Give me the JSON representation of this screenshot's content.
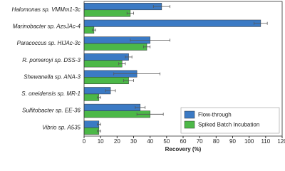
{
  "chart_data": {
    "type": "hbar",
    "categories": [
      "Halomonas sp. VMMm1-3c",
      "Marinobacter sp. AzsJAc-4",
      "Paracoccus sp. HIJAc-3c",
      "R. pomeroyi sp. DSS-3",
      "Shewanella sp. ANA-3",
      "S. oneidensis sp. MR-1",
      "Sulfitobacter sp. EE-36",
      "Vibrio sp. A535"
    ],
    "series": [
      {
        "name": "Flow-through",
        "color": "#3b7ac4",
        "values": [
          47,
          107,
          40,
          27,
          32,
          16,
          34,
          9
        ],
        "errors": [
          5,
          4,
          12,
          2,
          14,
          3,
          3,
          1
        ]
      },
      {
        "name": "Spiked Batch Incubation",
        "color": "#4cb848",
        "values": [
          28,
          6,
          38,
          23,
          27,
          9,
          40,
          9
        ],
        "errors": [
          2,
          1,
          2,
          2,
          3,
          1,
          8,
          1
        ]
      }
    ],
    "xlabel": "Recovery (%)",
    "xlim": [
      0,
      120
    ],
    "xticks": [
      0,
      10,
      20,
      30,
      40,
      50,
      60,
      70,
      80,
      90,
      100,
      110,
      120
    ],
    "legend": "lower right"
  }
}
